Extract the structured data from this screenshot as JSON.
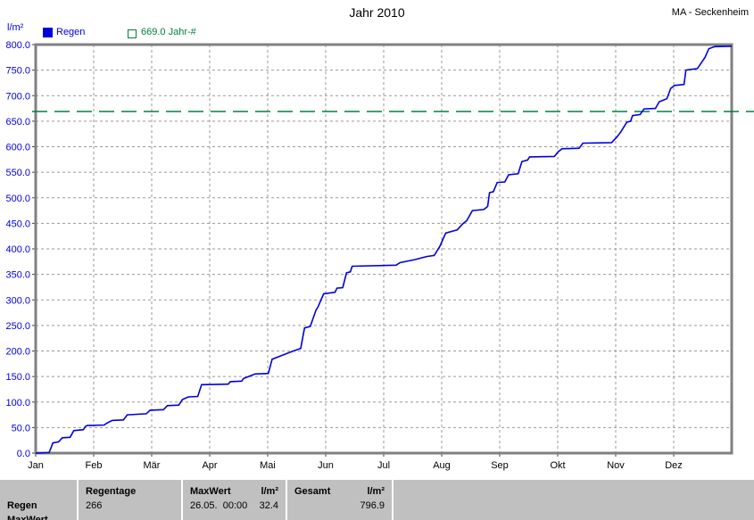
{
  "header": {
    "title": "Jahr 2010",
    "station": "MA - Seckenheim"
  },
  "legend": {
    "unit_label": "l/m²",
    "series_rain": "Regen",
    "series_threshold": "669.0 Jahr-#"
  },
  "colors": {
    "rain_line": "#0000e0",
    "threshold_line": "#008040",
    "grid": "#9a9a9a",
    "frame": "#808080",
    "table_bg": "#c0c0c0"
  },
  "chart_data": {
    "type": "line",
    "title": "Jahr 2010",
    "ylabel": "l/m²",
    "xlabel": "",
    "ylim": [
      0,
      800
    ],
    "y_ticks": [
      0,
      50,
      100,
      150,
      200,
      250,
      300,
      350,
      400,
      450,
      500,
      550,
      600,
      650,
      700,
      750,
      800
    ],
    "x_tick_labels": [
      "Jan",
      "Feb",
      "Mär",
      "Apr",
      "Mai",
      "Jun",
      "Jul",
      "Aug",
      "Sep",
      "Okt",
      "Nov",
      "Dez"
    ],
    "grid": true,
    "legend_position": "top-left",
    "threshold": {
      "value": 669.0,
      "label": "669.0 Jahr-#",
      "color": "#008040"
    },
    "series": [
      {
        "name": "Regen",
        "color": "#0000e0",
        "description": "cumulative rainfall l/m² vs day of year 2010",
        "points": [
          [
            0,
            0
          ],
          [
            7,
            1
          ],
          [
            8,
            10
          ],
          [
            9,
            20
          ],
          [
            12,
            22
          ],
          [
            14,
            30
          ],
          [
            18,
            31
          ],
          [
            20,
            44
          ],
          [
            25,
            46
          ],
          [
            26,
            52
          ],
          [
            27,
            54
          ],
          [
            36,
            55
          ],
          [
            37,
            58
          ],
          [
            40,
            64
          ],
          [
            46,
            65
          ],
          [
            48,
            75
          ],
          [
            58,
            77
          ],
          [
            60,
            84
          ],
          [
            67,
            85
          ],
          [
            69,
            93
          ],
          [
            75,
            94
          ],
          [
            77,
            105
          ],
          [
            80,
            110
          ],
          [
            85,
            111
          ],
          [
            87,
            134
          ],
          [
            101,
            135
          ],
          [
            102,
            140
          ],
          [
            108,
            141
          ],
          [
            109,
            146
          ],
          [
            113,
            152
          ],
          [
            115,
            155
          ],
          [
            122,
            156
          ],
          [
            124,
            184
          ],
          [
            133,
            197
          ],
          [
            136,
            201
          ],
          [
            139,
            205
          ],
          [
            141,
            245
          ],
          [
            144,
            248
          ],
          [
            147,
            280
          ],
          [
            148,
            286
          ],
          [
            151,
            312
          ],
          [
            157,
            315
          ],
          [
            158,
            323
          ],
          [
            161,
            324
          ],
          [
            163,
            353
          ],
          [
            165,
            355
          ],
          [
            166,
            366
          ],
          [
            189,
            368
          ],
          [
            191,
            373
          ],
          [
            199,
            379
          ],
          [
            205,
            385
          ],
          [
            209,
            387
          ],
          [
            212,
            405
          ],
          [
            213,
            414
          ],
          [
            215,
            431
          ],
          [
            221,
            437
          ],
          [
            224,
            449
          ],
          [
            226,
            455
          ],
          [
            229,
            475
          ],
          [
            235,
            477
          ],
          [
            237,
            483
          ],
          [
            238,
            510
          ],
          [
            240,
            512
          ],
          [
            242,
            530
          ],
          [
            246,
            531
          ],
          [
            248,
            545
          ],
          [
            253,
            547
          ],
          [
            255,
            571
          ],
          [
            258,
            574
          ],
          [
            259,
            580
          ],
          [
            272,
            581
          ],
          [
            274,
            590
          ],
          [
            276,
            596
          ],
          [
            285,
            597
          ],
          [
            287,
            607
          ],
          [
            302,
            608
          ],
          [
            305,
            620
          ],
          [
            307,
            630
          ],
          [
            310,
            648
          ],
          [
            312,
            650
          ],
          [
            313,
            661
          ],
          [
            317,
            663
          ],
          [
            319,
            674
          ],
          [
            325,
            675
          ],
          [
            327,
            688
          ],
          [
            329,
            691
          ],
          [
            331,
            694
          ],
          [
            333,
            714
          ],
          [
            335,
            720
          ],
          [
            340,
            722
          ],
          [
            341,
            750
          ],
          [
            347,
            753
          ],
          [
            351,
            775
          ],
          [
            353,
            792
          ],
          [
            356,
            796
          ],
          [
            365,
            796.9
          ]
        ]
      }
    ],
    "final_total": 796.9
  },
  "summary_table": {
    "row_label_1": "Regen",
    "row_label_2": "MaxWert",
    "regentage": {
      "header": "Regentage",
      "value": "266"
    },
    "maxwert": {
      "header": "MaxWert",
      "unit": "l/m²",
      "value_date": "26.05.",
      "value_time": "00:00",
      "value": "32.4"
    },
    "gesamt": {
      "header": "Gesamt",
      "unit": "l/m²",
      "value": "796.9"
    }
  }
}
